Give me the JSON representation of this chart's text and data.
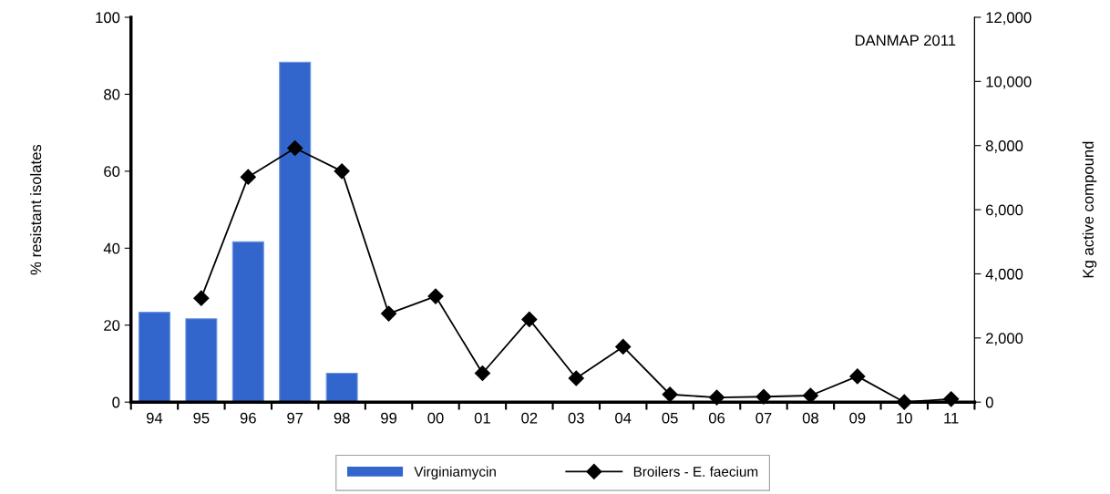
{
  "chart_data": {
    "type": "bar",
    "categories": [
      "94",
      "95",
      "96",
      "97",
      "98",
      "99",
      "00",
      "01",
      "02",
      "03",
      "04",
      "05",
      "06",
      "07",
      "08",
      "09",
      "10",
      "11"
    ],
    "ylabel": "% resistant isolates",
    "y2label": "Kg active compound",
    "ylim": [
      0,
      100
    ],
    "yticks": [
      0,
      20,
      40,
      60,
      80,
      100
    ],
    "y2lim": [
      0,
      12000
    ],
    "y2ticks": [
      {
        "value": 0,
        "label": "0"
      },
      {
        "value": 2000,
        "label": "2,000"
      },
      {
        "value": 4000,
        "label": "4,000"
      },
      {
        "value": 6000,
        "label": "6,000"
      },
      {
        "value": 8000,
        "label": "8,000"
      },
      {
        "value": 10000,
        "label": "10,000"
      },
      {
        "value": 12000,
        "label": "12,000"
      }
    ],
    "series": [
      {
        "name": "Virginiamycin",
        "axis": "y2",
        "color": "#3366cc",
        "values": [
          2800,
          2600,
          5000,
          10600,
          900,
          null,
          null,
          null,
          null,
          null,
          null,
          null,
          null,
          null,
          null,
          null,
          null,
          null
        ]
      },
      {
        "name": "Broilers - E. faecium",
        "type": "line",
        "axis": "y",
        "color": "#000000",
        "marker": "diamond",
        "line_style": "solid",
        "values": [
          null,
          27,
          58.5,
          66,
          60,
          23,
          27.5,
          7.5,
          21.5,
          6.2,
          14.4,
          2,
          1.2,
          1.4,
          1.7,
          6.7,
          0,
          0.8
        ]
      }
    ],
    "annotations": [
      "DANMAP 2011"
    ],
    "legend": "bottom",
    "grid": false
  }
}
